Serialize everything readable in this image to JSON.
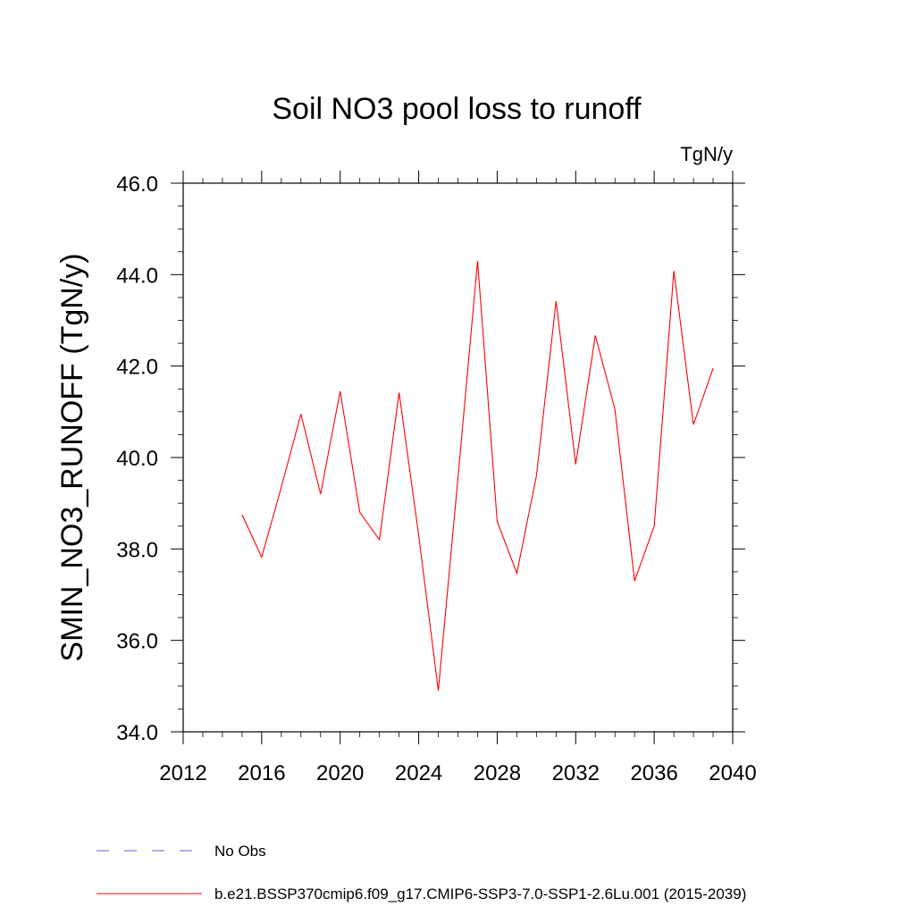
{
  "chart_data": {
    "type": "line",
    "title": "Soil NO3 pool loss to runoff",
    "units": "TgN/y",
    "xlabel": "",
    "ylabel": "SMIN_NO3_RUNOFF  (TgN/y)",
    "xlim": [
      2012,
      2040
    ],
    "ylim": [
      34.0,
      46.0
    ],
    "x_ticks": [
      2012,
      2016,
      2020,
      2024,
      2028,
      2032,
      2036,
      2040
    ],
    "x_tick_labels": [
      "2012",
      "2016",
      "2020",
      "2024",
      "2028",
      "2032",
      "2036",
      "2040"
    ],
    "y_ticks": [
      34.0,
      36.0,
      38.0,
      40.0,
      42.0,
      44.0,
      46.0
    ],
    "y_tick_labels": [
      "34.0",
      "36.0",
      "38.0",
      "40.0",
      "42.0",
      "44.0",
      "46.0"
    ],
    "grid": false,
    "legend_placement": "bottom",
    "series": [
      {
        "name": "b.e21.BSSP370cmip6.f09_g17.CMIP6-SSP3-7.0-SSP1-2.6Lu.001 (2015-2039)",
        "color": "#ff0000",
        "style": "solid",
        "x": [
          2015,
          2016,
          2017,
          2018,
          2019,
          2020,
          2021,
          2022,
          2023,
          2024,
          2025,
          2026,
          2027,
          2028,
          2029,
          2030,
          2031,
          2032,
          2033,
          2034,
          2035,
          2036,
          2037,
          2038,
          2039
        ],
        "values": [
          38.75,
          37.82,
          39.35,
          40.95,
          39.2,
          41.45,
          38.8,
          38.2,
          41.42,
          38.3,
          34.9,
          39.55,
          44.3,
          38.6,
          37.47,
          39.6,
          43.42,
          39.85,
          42.67,
          41.05,
          37.3,
          38.5,
          44.08,
          40.72,
          41.95
        ]
      }
    ],
    "legend": [
      {
        "label": "No Obs",
        "color": "#6a5acd",
        "style": "dashed"
      },
      {
        "label": "b.e21.BSSP370cmip6.f09_g17.CMIP6-SSP3-7.0-SSP1-2.6Lu.001 (2015-2039)",
        "color": "#ff0000",
        "style": "solid"
      }
    ]
  }
}
